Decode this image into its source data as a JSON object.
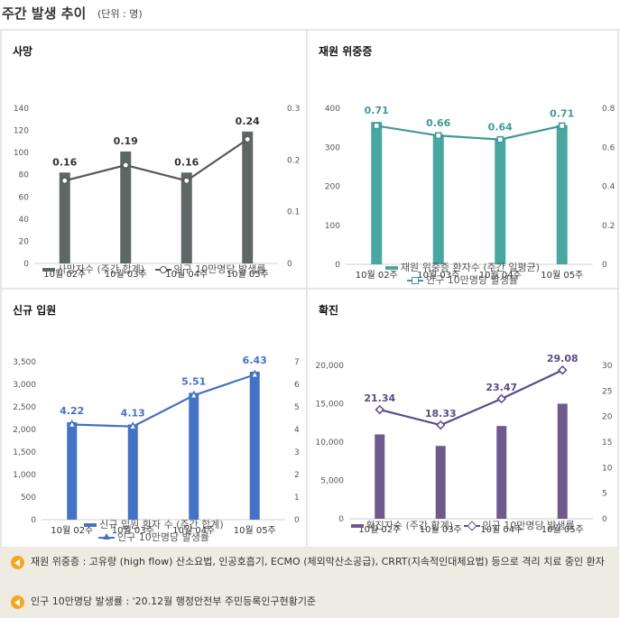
{
  "header": {
    "title": "주간 발생 추이",
    "unit": "(단위 : 명)"
  },
  "chart_data": [
    {
      "id": "death",
      "type": "bar+line",
      "title": "사망",
      "categories": [
        "10월 02주",
        "10월 03주",
        "10월 04주",
        "10월 05주"
      ],
      "series": [
        {
          "name": "사망자수 (주간 합계)",
          "kind": "bar",
          "axis": "left",
          "values": [
            82,
            101,
            82,
            119
          ]
        },
        {
          "name": "인구 10만명당 발생률",
          "kind": "line",
          "axis": "right",
          "marker": "circle",
          "values": [
            0.16,
            0.19,
            0.16,
            0.24
          ]
        }
      ],
      "data_labels": [
        "0.16",
        "0.19",
        "0.16",
        "0.24"
      ],
      "left_axis": {
        "min": 0,
        "max": 140,
        "ticks": [
          "0",
          "20",
          "40",
          "60",
          "80",
          "100",
          "120",
          "140"
        ]
      },
      "right_axis": {
        "min": 0,
        "max": 0.3,
        "ticks": [
          "0",
          "0.1",
          "0.2",
          "0.3"
        ]
      },
      "colors": {
        "bar": "#5f6766",
        "line": "#595959"
      }
    },
    {
      "id": "severe",
      "type": "bar+line",
      "title": "재원 위중증",
      "categories": [
        "10월 02주",
        "10월 03주",
        "10월 04주",
        "10월 05주"
      ],
      "series": [
        {
          "name": "재원 위중증 환자수 (주간 일평균)",
          "kind": "bar",
          "axis": "left",
          "values": [
            365,
            333,
            323,
            357
          ]
        },
        {
          "name": "인구 10만명당 발생률",
          "kind": "line",
          "axis": "right",
          "marker": "square",
          "values": [
            0.71,
            0.66,
            0.64,
            0.71
          ]
        }
      ],
      "data_labels": [
        "0.71",
        "0.66",
        "0.64",
        "0.71"
      ],
      "left_axis": {
        "min": 0,
        "max": 400,
        "ticks": [
          "0",
          "100",
          "200",
          "300",
          "400"
        ]
      },
      "right_axis": {
        "min": 0,
        "max": 0.8,
        "ticks": [
          "0",
          "0.2",
          "0.4",
          "0.6",
          "0.8"
        ]
      },
      "colors": {
        "bar": "#4aa6a0",
        "line": "#3f9a94"
      }
    },
    {
      "id": "admission",
      "type": "bar+line",
      "title": "신규 입원",
      "categories": [
        "10월 02주",
        "10월 03주",
        "10월 04주",
        "10월 05주"
      ],
      "series": [
        {
          "name": "신규 입원 환자 수 (주간 합계)",
          "kind": "bar",
          "axis": "left",
          "values": [
            2160,
            2110,
            2810,
            3280
          ]
        },
        {
          "name": "인구 10만명당 발생률",
          "kind": "line",
          "axis": "right",
          "marker": "triangle",
          "values": [
            4.22,
            4.13,
            5.51,
            6.43
          ]
        }
      ],
      "data_labels": [
        "4.22",
        "4.13",
        "5.51",
        "6.43"
      ],
      "left_axis": {
        "min": 0,
        "max": 3500,
        "ticks": [
          "0",
          "500",
          "1,000",
          "1,500",
          "2,000",
          "2,500",
          "3,000",
          "3,500"
        ]
      },
      "right_axis": {
        "min": 0,
        "max": 7,
        "ticks": [
          "0",
          "1",
          "2",
          "3",
          "4",
          "5",
          "6",
          "7"
        ]
      },
      "colors": {
        "bar": "#4472c4",
        "line": "#4472c4"
      }
    },
    {
      "id": "confirmed",
      "type": "bar+line",
      "title": "확진",
      "categories": [
        "10월 02주",
        "10월 03주",
        "10월 04주",
        "10월 05주"
      ],
      "series": [
        {
          "name": "확진자수 (주간 합계)",
          "kind": "bar",
          "axis": "left",
          "values": [
            11000,
            9500,
            12100,
            15000
          ]
        },
        {
          "name": "인구 10만명당 발생률",
          "kind": "line",
          "axis": "right",
          "marker": "diamond",
          "values": [
            21.34,
            18.33,
            23.47,
            29.08
          ]
        }
      ],
      "data_labels": [
        "21.34",
        "18.33",
        "23.47",
        "29.08"
      ],
      "left_axis": {
        "min": 0,
        "max": 20000,
        "ticks": [
          "0",
          "5,000",
          "10,000",
          "15,000",
          "20,000"
        ]
      },
      "right_axis": {
        "min": 0,
        "max": 30,
        "ticks": [
          "0",
          "5",
          "10",
          "15",
          "20",
          "25",
          "30"
        ]
      },
      "colors": {
        "bar": "#6f5a8e",
        "line": "#5b4a8a"
      }
    }
  ],
  "notes": [
    "재원 위중증 : 고유량 (high flow) 산소요법, 인공호흡기, ECMO (체외막산소공급), CRRT(지속적인대체요법) 등으로 격리 치료 중인 환자",
    "인구 10만명당 발생률 : '20.12월 행정안전부 주민등록인구현황기준"
  ]
}
